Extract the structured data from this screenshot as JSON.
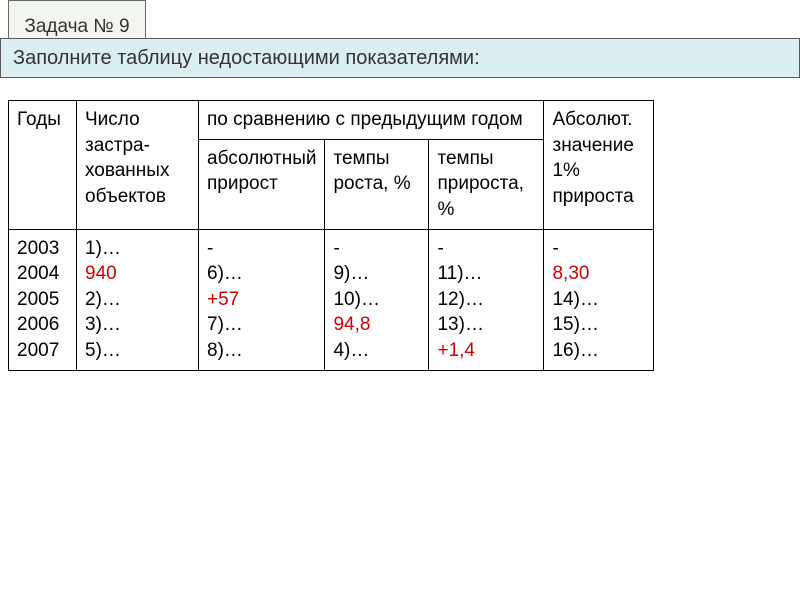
{
  "task_label": "Задача № 9",
  "title": "Заполните таблицу недостающими показателями:",
  "headers": {
    "years": "Годы",
    "num_objects": "Число застра-хованных объектов",
    "compared_group": "по сравнению с предыдущим годом",
    "absolute_increase": "абсолютный прирост",
    "growth_rate": "темпы роста, %",
    "increase_rate": "темпы прироста, %",
    "abs_1pct": "Абсолют. значение 1% прироста"
  },
  "rows": {
    "years": [
      "2003",
      "2004",
      "2005",
      "2006",
      "2007"
    ],
    "num_objects": [
      {
        "t": "1)…",
        "red": false
      },
      {
        "t": "940",
        "red": true
      },
      {
        "t": "2)…",
        "red": false
      },
      {
        "t": "3)…",
        "red": false
      },
      {
        "t": "5)…",
        "red": false
      }
    ],
    "abs_increase": [
      {
        "t": "-",
        "red": false
      },
      {
        "t": "6)…",
        "red": false
      },
      {
        "t": "+57",
        "red": true
      },
      {
        "t": "7)…",
        "red": false
      },
      {
        "t": "8)…",
        "red": false
      }
    ],
    "growth_rate": [
      {
        "t": "-",
        "red": false
      },
      {
        "t": "9)…",
        "red": false
      },
      {
        "t": "10)…",
        "red": false
      },
      {
        "t": "94,8",
        "red": true
      },
      {
        "t": "4)…",
        "red": false
      }
    ],
    "increase_rate": [
      {
        "t": "-",
        "red": false
      },
      {
        "t": "11)…",
        "red": false
      },
      {
        "t": "12)…",
        "red": false
      },
      {
        "t": "13)…",
        "red": false
      },
      {
        "t": "+1,4",
        "red": true
      }
    ],
    "abs_1pct": [
      {
        "t": "-",
        "red": false
      },
      {
        "t": "8,30",
        "red": true
      },
      {
        "t": "14)…",
        "red": false
      },
      {
        "t": "15)…",
        "red": false
      },
      {
        "t": "16)…",
        "red": false
      }
    ]
  },
  "colors": {
    "task_bg": "#f3f5f0",
    "title_bg": "#dceef0",
    "border": "#000000",
    "red": "#d40000"
  }
}
